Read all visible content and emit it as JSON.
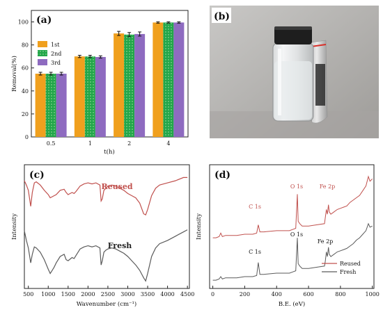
{
  "figure": {
    "panels": [
      {
        "letter": "(a)"
      },
      {
        "letter": "(b)"
      },
      {
        "letter": "(c)"
      },
      {
        "letter": "(d)"
      }
    ]
  },
  "colors": {
    "bar_1st": "#F0A01E",
    "bar_2nd": "#22A64A",
    "bar_3rd": "#8E6BC0",
    "reused": "#C0504D",
    "fresh": "#5A5A5A"
  },
  "chart_data": [
    {
      "panel": "(a)",
      "type": "bar",
      "xlabel": "t(h)",
      "ylabel": "Removal(%)",
      "categories": [
        "0.5",
        "1",
        "2",
        "4"
      ],
      "ylim": [
        0,
        110
      ],
      "yticks": [
        0,
        20,
        40,
        60,
        80,
        100
      ],
      "legend_position": "top-left",
      "grid": false,
      "series": [
        {
          "name": "1st",
          "values": [
            55,
            70,
            90,
            99.5
          ],
          "errors": [
            1.2,
            1.0,
            1.8,
            0.6
          ]
        },
        {
          "name": "2nd",
          "values": [
            55,
            70,
            89,
            99.5
          ],
          "errors": [
            1.2,
            1.0,
            1.8,
            0.6
          ]
        },
        {
          "name": "3rd",
          "values": [
            55,
            69.5,
            89.5,
            99.5
          ],
          "errors": [
            1.2,
            1.0,
            1.8,
            0.6
          ]
        }
      ]
    },
    {
      "panel": "(c)",
      "type": "line",
      "xlabel": "Wavenumber (cm⁻¹)",
      "ylabel": "Intensity",
      "xlim": [
        500,
        4500
      ],
      "xticks": [
        500,
        1000,
        1500,
        2000,
        2500,
        3000,
        3500,
        4000,
        4500
      ],
      "yticks": [],
      "series": [
        {
          "name": "Reused",
          "x": [
            400,
            450,
            500,
            560,
            600,
            650,
            700,
            800,
            900,
            1000,
            1050,
            1100,
            1200,
            1300,
            1400,
            1450,
            1500,
            1600,
            1650,
            1700,
            1800,
            1900,
            2000,
            2100,
            2200,
            2300,
            2330,
            2360,
            2400,
            2450,
            2500,
            2600,
            2700,
            2800,
            2900,
            3000,
            3100,
            3200,
            3300,
            3400,
            3450,
            3500,
            3600,
            3700,
            3800,
            4000,
            4200,
            4400,
            4500
          ],
          "y": [
            0.89,
            0.85,
            0.8,
            0.65,
            0.78,
            0.87,
            0.88,
            0.85,
            0.8,
            0.76,
            0.73,
            0.74,
            0.76,
            0.8,
            0.81,
            0.78,
            0.76,
            0.78,
            0.77,
            0.79,
            0.84,
            0.86,
            0.87,
            0.86,
            0.87,
            0.85,
            0.7,
            0.72,
            0.8,
            0.82,
            0.84,
            0.85,
            0.84,
            0.82,
            0.8,
            0.77,
            0.75,
            0.73,
            0.68,
            0.58,
            0.57,
            0.62,
            0.75,
            0.82,
            0.85,
            0.87,
            0.89,
            0.92,
            0.92
          ]
        },
        {
          "name": "Fresh",
          "x": [
            400,
            450,
            500,
            560,
            600,
            650,
            700,
            800,
            900,
            1000,
            1050,
            1100,
            1150,
            1200,
            1300,
            1400,
            1450,
            1500,
            1600,
            1650,
            1700,
            1800,
            1900,
            2000,
            2100,
            2200,
            2300,
            2330,
            2360,
            2400,
            2450,
            2500,
            2600,
            2700,
            2800,
            2900,
            3000,
            3100,
            3200,
            3300,
            3400,
            3450,
            3500,
            3600,
            3700,
            3800,
            4000,
            4200,
            4400,
            4500
          ],
          "y": [
            0.42,
            0.33,
            0.26,
            0.12,
            0.2,
            0.27,
            0.26,
            0.22,
            0.15,
            0.06,
            0.02,
            0.05,
            0.08,
            0.12,
            0.18,
            0.2,
            0.15,
            0.14,
            0.17,
            0.16,
            0.19,
            0.25,
            0.27,
            0.28,
            0.27,
            0.28,
            0.26,
            0.1,
            0.14,
            0.22,
            0.24,
            0.25,
            0.26,
            0.25,
            0.23,
            0.21,
            0.18,
            0.14,
            0.1,
            0.05,
            -0.02,
            -0.05,
            0.02,
            0.18,
            0.26,
            0.3,
            0.33,
            0.37,
            0.41,
            0.43
          ]
        }
      ],
      "annotations": [
        "Reused",
        "Fresh"
      ]
    },
    {
      "panel": "(d)",
      "type": "line",
      "xlabel": "B.E. (eV)",
      "ylabel": "Intensity",
      "xlim": [
        0,
        1000
      ],
      "xticks": [
        0,
        200,
        400,
        600,
        800,
        1000
      ],
      "yticks": [],
      "legend_position": "bottom-right",
      "series": [
        {
          "name": "Reused",
          "x": [
            0,
            20,
            40,
            50,
            60,
            80,
            100,
            150,
            200,
            250,
            275,
            285,
            295,
            320,
            400,
            480,
            500,
            520,
            530,
            535,
            545,
            560,
            600,
            650,
            700,
            705,
            712,
            718,
            725,
            730,
            740,
            760,
            780,
            800,
            820,
            840,
            860,
            880,
            900,
            920,
            940,
            960,
            975,
            985,
            1000
          ],
          "y": [
            0.38,
            0.38,
            0.39,
            0.42,
            0.39,
            0.4,
            0.4,
            0.4,
            0.41,
            0.41,
            0.42,
            0.49,
            0.43,
            0.43,
            0.44,
            0.44,
            0.45,
            0.46,
            0.75,
            0.52,
            0.5,
            0.48,
            0.48,
            0.49,
            0.5,
            0.55,
            0.62,
            0.58,
            0.66,
            0.6,
            0.58,
            0.6,
            0.62,
            0.63,
            0.64,
            0.65,
            0.68,
            0.7,
            0.72,
            0.74,
            0.78,
            0.82,
            0.9,
            0.86,
            0.88
          ]
        },
        {
          "name": "Fresh",
          "x": [
            0,
            20,
            40,
            50,
            60,
            80,
            100,
            150,
            200,
            250,
            275,
            285,
            295,
            320,
            400,
            480,
            500,
            520,
            530,
            535,
            545,
            560,
            600,
            650,
            700,
            705,
            712,
            718,
            725,
            730,
            740,
            760,
            780,
            800,
            820,
            840,
            860,
            880,
            900,
            920,
            940,
            960,
            975,
            985,
            1000
          ],
          "y": [
            0.02,
            0.02,
            0.03,
            0.05,
            0.03,
            0.04,
            0.04,
            0.04,
            0.05,
            0.05,
            0.06,
            0.17,
            0.07,
            0.07,
            0.08,
            0.08,
            0.09,
            0.1,
            0.38,
            0.16,
            0.14,
            0.12,
            0.12,
            0.13,
            0.14,
            0.18,
            0.26,
            0.22,
            0.3,
            0.24,
            0.22,
            0.24,
            0.26,
            0.27,
            0.28,
            0.29,
            0.31,
            0.33,
            0.36,
            0.38,
            0.41,
            0.44,
            0.5,
            0.47,
            0.48
          ]
        }
      ],
      "annotations": {
        "reused": [
          "C 1s",
          "O 1s",
          "Fe 2p"
        ],
        "fresh": [
          "C 1s",
          "O 1s",
          "Fe 2p"
        ]
      }
    }
  ]
}
